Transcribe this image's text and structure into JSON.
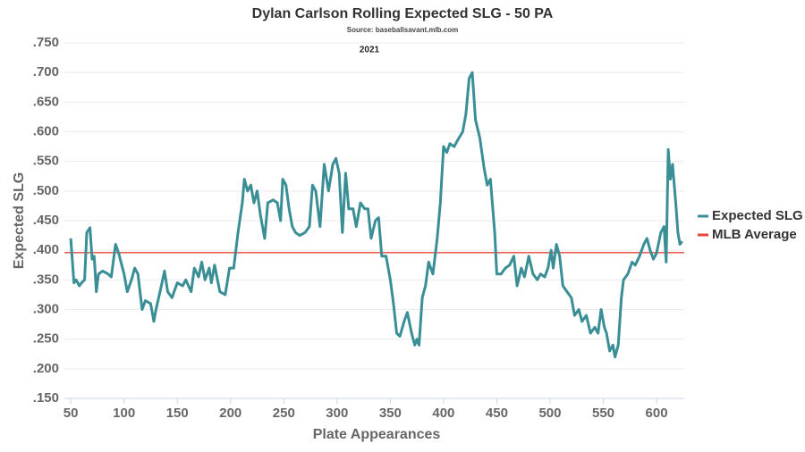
{
  "chart_data": {
    "type": "line",
    "title": "Dylan Carlson Rolling Expected SLG - 50 PA",
    "subtitle": "Source: baseballsavant.mlb.com",
    "annotation": "2021",
    "xlabel": "Plate Appearances",
    "ylabel": "Expected SLG",
    "xlim": [
      44,
      626
    ],
    "ylim": [
      0.15,
      0.75
    ],
    "xticks": [
      50,
      100,
      150,
      200,
      250,
      300,
      350,
      400,
      450,
      500,
      550,
      600
    ],
    "yticks": [
      {
        "value": 0.15,
        "label": ".150"
      },
      {
        "value": 0.2,
        "label": ".200"
      },
      {
        "value": 0.25,
        "label": ".250"
      },
      {
        "value": 0.3,
        "label": ".300"
      },
      {
        "value": 0.35,
        "label": ".350"
      },
      {
        "value": 0.4,
        "label": ".400"
      },
      {
        "value": 0.45,
        "label": ".450"
      },
      {
        "value": 0.5,
        "label": ".500"
      },
      {
        "value": 0.55,
        "label": ".550"
      },
      {
        "value": 0.6,
        "label": ".600"
      },
      {
        "value": 0.65,
        "label": ".650"
      },
      {
        "value": 0.7,
        "label": ".700"
      },
      {
        "value": 0.75,
        "label": ".750"
      }
    ],
    "grid": true,
    "legend": "right",
    "x": [
      50,
      53,
      55,
      58,
      60,
      63,
      65,
      68,
      70,
      72,
      74,
      76,
      80,
      85,
      88,
      92,
      95,
      100,
      103,
      107,
      110,
      113,
      117,
      120,
      125,
      128,
      130,
      135,
      138,
      141,
      145,
      150,
      155,
      158,
      163,
      166,
      170,
      173,
      176,
      180,
      182,
      185,
      190,
      195,
      199,
      203,
      207,
      211,
      213,
      216,
      219,
      222,
      225,
      228,
      232,
      235,
      240,
      244,
      247,
      249,
      252,
      255,
      258,
      261,
      265,
      270,
      274,
      277,
      280,
      284,
      288,
      292,
      296,
      299,
      302,
      305,
      308,
      311,
      315,
      318,
      322,
      326,
      329,
      332,
      336,
      339,
      342,
      346,
      350,
      353,
      356,
      359,
      363,
      366,
      370,
      373,
      375,
      377,
      380,
      383,
      386,
      390,
      394,
      397,
      400,
      403,
      406,
      410,
      413,
      418,
      421,
      424,
      427,
      430,
      434,
      438,
      441,
      444,
      448,
      450,
      454,
      458,
      462,
      466,
      469,
      473,
      476,
      480,
      484,
      488,
      491,
      495,
      498,
      501,
      503,
      506,
      509,
      512,
      516,
      520,
      523,
      527,
      530,
      534,
      538,
      542,
      545,
      548,
      551,
      553,
      556,
      559,
      561,
      564,
      567,
      569,
      573,
      577,
      580,
      584,
      588,
      591,
      594,
      597,
      600,
      604,
      607,
      609,
      611,
      613,
      615,
      618,
      620,
      622,
      624
    ],
    "series": [
      {
        "name": "Expected SLG",
        "color": "#3a8e96",
        "values": [
          0.42,
          0.345,
          0.35,
          0.34,
          0.345,
          0.35,
          0.43,
          0.438,
          0.385,
          0.39,
          0.33,
          0.36,
          0.365,
          0.36,
          0.355,
          0.41,
          0.395,
          0.36,
          0.33,
          0.35,
          0.37,
          0.36,
          0.3,
          0.315,
          0.31,
          0.28,
          0.3,
          0.34,
          0.365,
          0.33,
          0.32,
          0.345,
          0.34,
          0.35,
          0.33,
          0.37,
          0.355,
          0.38,
          0.35,
          0.37,
          0.345,
          0.375,
          0.33,
          0.325,
          0.37,
          0.37,
          0.43,
          0.48,
          0.52,
          0.5,
          0.51,
          0.48,
          0.5,
          0.46,
          0.42,
          0.48,
          0.485,
          0.48,
          0.45,
          0.52,
          0.51,
          0.47,
          0.44,
          0.43,
          0.425,
          0.43,
          0.44,
          0.51,
          0.5,
          0.44,
          0.545,
          0.5,
          0.545,
          0.555,
          0.53,
          0.43,
          0.53,
          0.47,
          0.47,
          0.44,
          0.48,
          0.47,
          0.47,
          0.42,
          0.45,
          0.455,
          0.39,
          0.39,
          0.35,
          0.31,
          0.26,
          0.255,
          0.28,
          0.295,
          0.26,
          0.24,
          0.25,
          0.24,
          0.32,
          0.34,
          0.38,
          0.36,
          0.42,
          0.48,
          0.575,
          0.565,
          0.58,
          0.575,
          0.585,
          0.6,
          0.63,
          0.69,
          0.7,
          0.62,
          0.59,
          0.54,
          0.51,
          0.52,
          0.43,
          0.36,
          0.36,
          0.37,
          0.375,
          0.39,
          0.34,
          0.37,
          0.355,
          0.39,
          0.36,
          0.35,
          0.36,
          0.355,
          0.37,
          0.4,
          0.37,
          0.41,
          0.39,
          0.34,
          0.33,
          0.32,
          0.29,
          0.3,
          0.28,
          0.29,
          0.26,
          0.27,
          0.26,
          0.3,
          0.27,
          0.26,
          0.23,
          0.24,
          0.22,
          0.24,
          0.32,
          0.35,
          0.36,
          0.38,
          0.375,
          0.39,
          0.41,
          0.42,
          0.4,
          0.385,
          0.395,
          0.43,
          0.44,
          0.38,
          0.57,
          0.52,
          0.545,
          0.48,
          0.43,
          0.41,
          0.415
        ]
      }
    ],
    "hline": {
      "name": "MLB Average",
      "value": 0.396,
      "color": "#e8453c"
    }
  }
}
